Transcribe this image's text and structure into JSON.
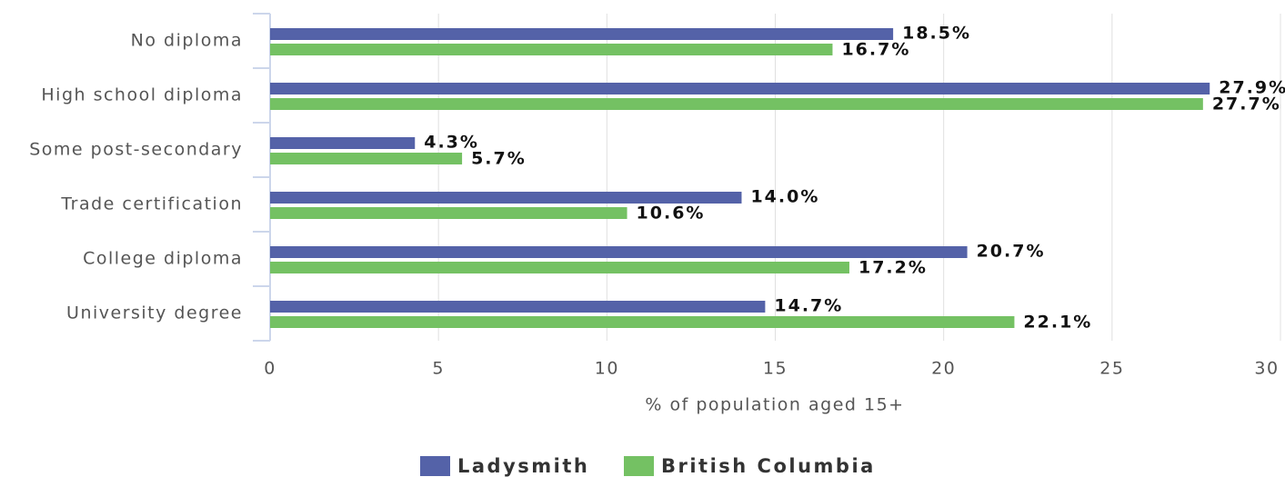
{
  "chart_data": {
    "type": "bar",
    "orientation": "horizontal",
    "x_label": "% of population aged 15+",
    "categories": [
      "No diploma",
      "High school diploma",
      "Some post-secondary",
      "Trade certification",
      "College diploma",
      "University degree"
    ],
    "series": [
      {
        "name": "Ladysmith",
        "color": "#5462a8",
        "values": [
          18.5,
          27.9,
          4.3,
          14.0,
          20.7,
          14.7
        ],
        "value_labels": [
          "18.5%",
          "27.9%",
          "4.3%",
          "14.0%",
          "20.7%",
          "14.7%"
        ]
      },
      {
        "name": "British Columbia",
        "color": "#74c163",
        "values": [
          16.7,
          27.7,
          5.7,
          10.6,
          17.2,
          22.1
        ],
        "value_labels": [
          "16.7%",
          "27.7%",
          "5.7%",
          "10.6%",
          "17.2%",
          "22.1%"
        ]
      }
    ],
    "xlim": [
      0,
      30
    ],
    "xticks": [
      0,
      5,
      10,
      15,
      20,
      25,
      30
    ],
    "grid": true,
    "legend": "bottom"
  }
}
